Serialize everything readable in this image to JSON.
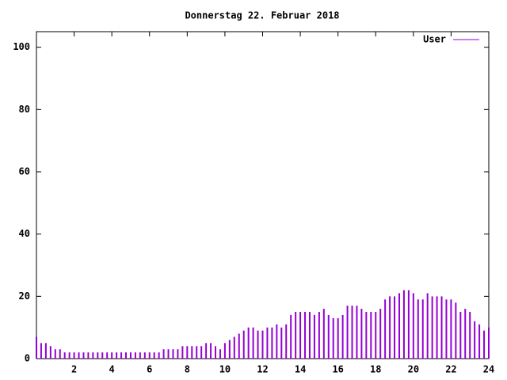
{
  "chart_data": {
    "type": "impulses",
    "title": "Donnerstag 22. Februar 2018",
    "x": [
      0,
      0.25,
      0.5,
      0.75,
      1,
      1.25,
      1.5,
      1.75,
      2,
      2.25,
      2.5,
      2.75,
      3,
      3.25,
      3.5,
      3.75,
      4,
      4.25,
      4.5,
      4.75,
      5,
      5.25,
      5.5,
      5.75,
      6,
      6.25,
      6.5,
      6.75,
      7,
      7.25,
      7.5,
      7.75,
      8,
      8.25,
      8.5,
      8.75,
      9,
      9.25,
      9.5,
      9.75,
      10,
      10.25,
      10.5,
      10.75,
      11,
      11.25,
      11.5,
      11.75,
      12,
      12.25,
      12.5,
      12.75,
      13,
      13.25,
      13.5,
      13.75,
      14,
      14.25,
      14.5,
      14.75,
      15,
      15.25,
      15.5,
      15.75,
      16,
      16.25,
      16.5,
      16.75,
      17,
      17.25,
      17.5,
      17.75,
      18,
      18.25,
      18.5,
      18.75,
      19,
      19.25,
      19.5,
      19.75,
      20,
      20.25,
      20.5,
      20.75,
      21,
      21.25,
      21.5,
      21.75,
      22,
      22.25,
      22.5,
      22.75,
      23,
      23.25,
      23.5,
      23.75,
      24
    ],
    "series": [
      {
        "name": "User",
        "color": "#9400d3",
        "values": [
          7,
          5,
          5,
          4,
          3,
          3,
          2,
          2,
          2,
          2,
          2,
          2,
          2,
          2,
          2,
          2,
          2,
          2,
          2,
          2,
          2,
          2,
          2,
          2,
          2,
          2,
          2,
          3,
          3,
          3,
          3,
          4,
          4,
          4,
          4,
          4,
          5,
          5,
          4,
          3,
          5,
          6,
          7,
          8,
          9,
          10,
          10,
          9,
          9,
          10,
          10,
          11,
          10,
          11,
          14,
          15,
          15,
          15,
          15,
          14,
          15,
          16,
          14,
          13,
          13,
          14,
          17,
          17,
          17,
          16,
          15,
          15,
          15,
          16,
          19,
          20,
          20,
          21,
          22,
          22,
          21,
          19,
          19,
          21,
          20,
          20,
          20,
          19,
          19,
          18,
          15,
          16,
          15,
          12,
          11,
          9,
          10
        ]
      }
    ],
    "xlim": [
      0,
      24
    ],
    "ylim": [
      0,
      105
    ],
    "xticks": [
      2,
      4,
      6,
      8,
      10,
      12,
      14,
      16,
      18,
      20,
      22,
      24
    ],
    "yticks": [
      0,
      20,
      40,
      60,
      80,
      100
    ],
    "legend": "top-right"
  }
}
